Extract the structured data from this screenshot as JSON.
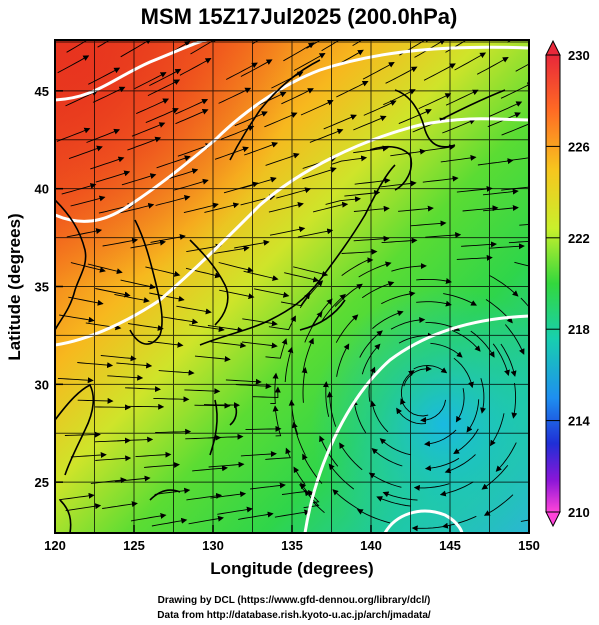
{
  "title": "MSM 15Z17Jul2025 (200.0hPa)",
  "map": {
    "xlabel": "Longitude (degrees)",
    "ylabel": "Latitude  (degrees)",
    "x_ticks": [
      "120",
      "125",
      "130",
      "135",
      "140",
      "145",
      "150"
    ],
    "y_ticks": [
      "25",
      "30",
      "35",
      "40",
      "45"
    ],
    "lon_range": [
      120,
      150
    ],
    "lat_range": [
      22.4,
      47.6
    ],
    "field": "geopotential height / temperature (shaded)",
    "overlay": "streamlines of wind",
    "contour_color": "#ffffff",
    "coast_color": "#000000"
  },
  "colorbar": {
    "labels": [
      "230",
      "226",
      "222",
      "218",
      "214",
      "210"
    ],
    "min": 210,
    "max": 230,
    "colors_top_to_bottom": [
      "#e8283a",
      "#ff7a1f",
      "#f6d31e",
      "#c6ef2c",
      "#3ad63f",
      "#19c7b4",
      "#1f8ff0",
      "#1f2fd6",
      "#8a16d8",
      "#ff44d9"
    ]
  },
  "credits": [
    "Drawing by DCL (https://www.gfd-dennou.org/library/dcl/)",
    "Data from http://database.rish.kyoto-u.ac.jp/arch/jmadata/"
  ]
}
